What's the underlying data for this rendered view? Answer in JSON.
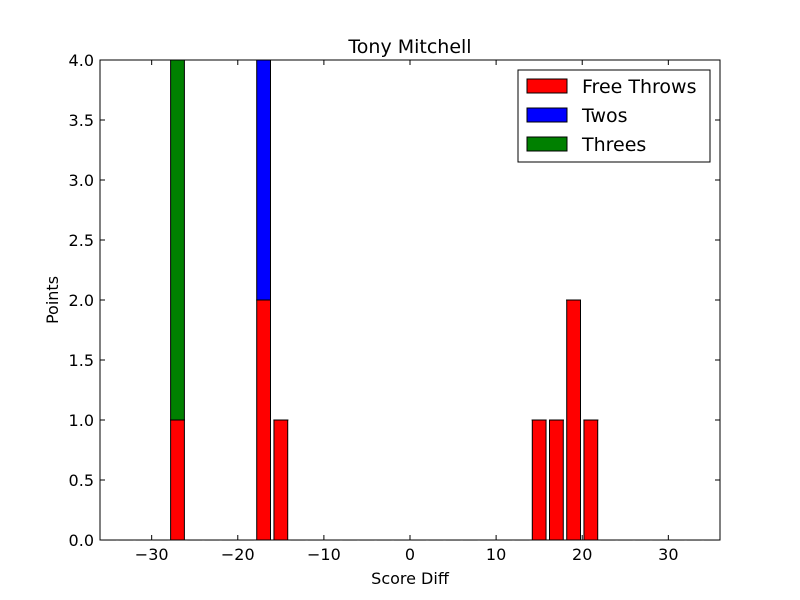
{
  "chart_data": {
    "type": "bar",
    "stacked": true,
    "title": "Tony Mitchell",
    "xlabel": "Score Diff",
    "ylabel": "Points",
    "xlim": [
      -36,
      36
    ],
    "ylim": [
      0,
      4.0
    ],
    "bin_width": 2,
    "xticks": [
      -30,
      -20,
      -10,
      0,
      10,
      20,
      30
    ],
    "xtick_labels": [
      "−30",
      "−20",
      "−10",
      "0",
      "10",
      "20",
      "30"
    ],
    "yticks": [
      0,
      0.5,
      1.0,
      1.5,
      2.0,
      2.5,
      3.0,
      3.5,
      4.0
    ],
    "ytick_labels": [
      "0.0",
      "0.5",
      "1.0",
      "1.5",
      "2.0",
      "2.5",
      "3.0",
      "3.5",
      "4.0"
    ],
    "x": [
      -35,
      -33,
      -31,
      -29,
      -27,
      -25,
      -23,
      -21,
      -19,
      -17,
      -15,
      -13,
      -11,
      -9,
      -7,
      -5,
      -3,
      -1,
      1,
      3,
      5,
      7,
      9,
      11,
      13,
      15,
      17,
      19,
      21,
      23,
      25,
      27,
      29,
      31,
      33,
      35
    ],
    "series": [
      {
        "name": "Free Throws",
        "color": "#ff0000",
        "values": [
          0,
          0,
          0,
          0,
          1,
          0,
          0,
          0,
          0,
          2,
          1,
          0,
          0,
          0,
          0,
          0,
          0,
          0,
          0,
          0,
          0,
          0,
          0,
          0,
          0,
          1,
          1,
          2,
          1,
          0,
          0,
          0,
          0,
          0,
          0,
          0
        ]
      },
      {
        "name": "Twos",
        "color": "#0000ff",
        "values": [
          0,
          0,
          0,
          0,
          0,
          0,
          0,
          0,
          0,
          2,
          0,
          0,
          0,
          0,
          0,
          0,
          0,
          0,
          0,
          0,
          0,
          0,
          0,
          0,
          0,
          0,
          0,
          0,
          0,
          0,
          0,
          0,
          0,
          0,
          0,
          0
        ]
      },
      {
        "name": "Threes",
        "color": "#008000",
        "values": [
          0,
          0,
          0,
          0,
          3,
          0,
          0,
          0,
          0,
          0,
          0,
          0,
          0,
          0,
          0,
          0,
          0,
          0,
          0,
          0,
          0,
          0,
          0,
          0,
          0,
          0,
          0,
          0,
          0,
          0,
          0,
          0,
          0,
          0,
          0,
          0
        ]
      }
    ],
    "legend_position": "top-right",
    "grid": false
  }
}
